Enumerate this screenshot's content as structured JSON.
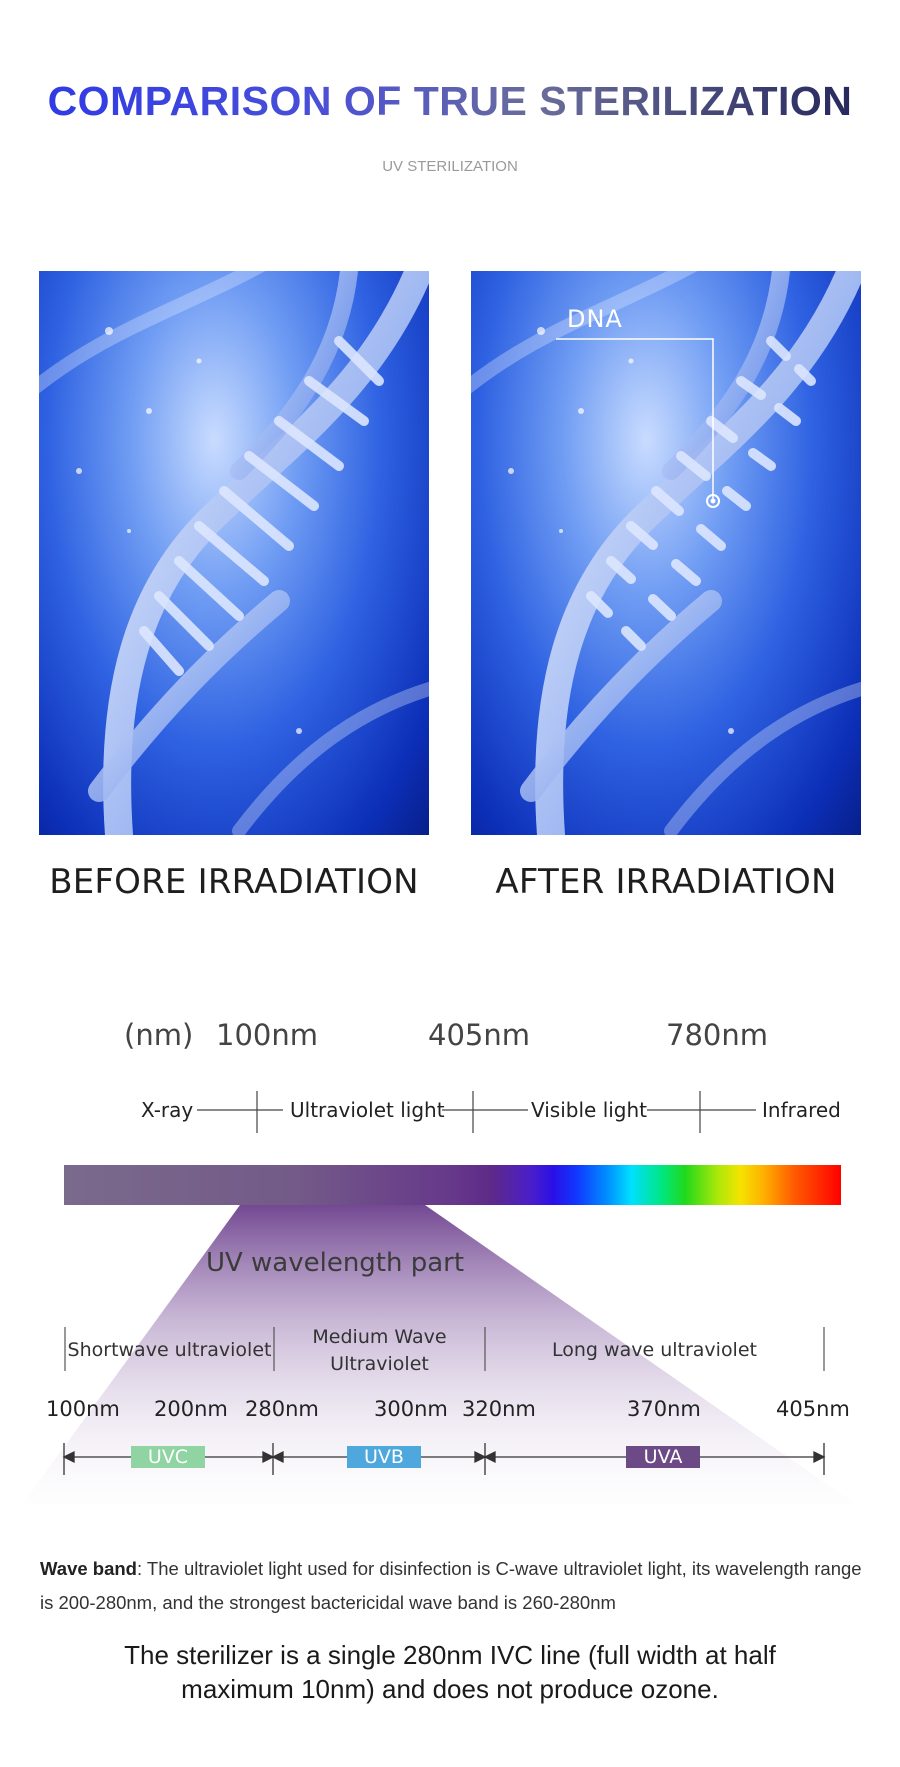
{
  "header": {
    "title": "COMPARISON OF TRUE STERILIZATION",
    "subtitle": "UV STERILIZATION"
  },
  "images": {
    "left_caption": "BEFORE IRRADIATION",
    "right_caption": "AFTER IRRADIATION",
    "dna_callout": "DNA"
  },
  "spectrum": {
    "unit": "(nm)",
    "markers": [
      "100nm",
      "405nm",
      "780nm"
    ],
    "regions": [
      "X-ray",
      "Ultraviolet light",
      "Visible light",
      "Infrared"
    ]
  },
  "uv": {
    "title": "UV wavelength part",
    "bands": {
      "short": "Shortwave ultraviolet",
      "medium_line1": "Medium Wave",
      "medium_line2": "Ultraviolet",
      "long": "Long wave ultraviolet"
    },
    "wavelengths": [
      "100nm",
      "200nm",
      "280nm",
      "300nm",
      "320nm",
      "370nm",
      "405nm"
    ],
    "chips": [
      {
        "label": "UVC",
        "color": "#8fd4a2"
      },
      {
        "label": "UVB",
        "color": "#4fa8dd"
      },
      {
        "label": "UVA",
        "color": "#6b4a86"
      }
    ]
  },
  "notes": {
    "wave_band_label": "Wave band",
    "wave_band_text": ": The ultraviolet light used for disinfection is C-wave ultraviolet light, its wavelength range is 200-280nm, and the strongest bactericidal wave band is 260-280nm",
    "statement_line1": "The sterilizer is a single 280nm IVC line (full width at half",
    "statement_line2": "maximum 10nm) and does not produce ozone."
  }
}
